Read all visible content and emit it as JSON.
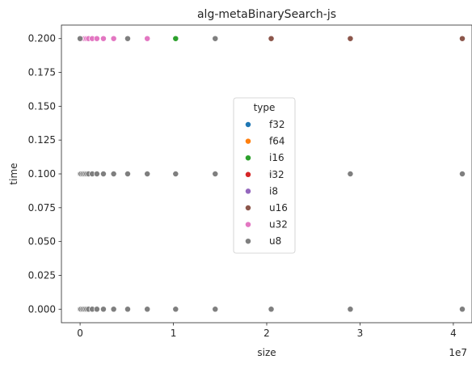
{
  "chart_data": {
    "type": "scatter",
    "title": "alg-metaBinarySearch-js",
    "xlabel": "size",
    "ylabel": "time",
    "x_offset_label": "1e7",
    "xlim": [
      -2000000,
      42000000
    ],
    "ylim": [
      -0.01,
      0.21
    ],
    "x_ticks": [
      0,
      10000000,
      20000000,
      30000000,
      40000000
    ],
    "x_tick_labels": [
      "0",
      "1",
      "2",
      "3",
      "4"
    ],
    "y_ticks": [
      0,
      0.025,
      0.05,
      0.075,
      0.1,
      0.125,
      0.15,
      0.175,
      0.2
    ],
    "y_tick_labels": [
      "0.000",
      "0.025",
      "0.050",
      "0.075",
      "0.100",
      "0.125",
      "0.150",
      "0.175",
      "0.200"
    ],
    "grid": false,
    "legend": {
      "title": "type",
      "position": "center"
    },
    "series": [
      {
        "name": "f32",
        "color": "#1f77b4",
        "points": [
          [
            0,
            0
          ],
          [
            0,
            0.2
          ]
        ]
      },
      {
        "name": "f64",
        "color": "#ff7f0e",
        "points": [
          [
            0,
            0
          ],
          [
            0,
            0.2
          ]
        ]
      },
      {
        "name": "i16",
        "color": "#2ca02c",
        "points": [
          [
            0,
            0
          ],
          [
            10240000,
            0.2
          ]
        ]
      },
      {
        "name": "i32",
        "color": "#d62728",
        "points": [
          [
            0,
            0
          ],
          [
            20480000,
            0.2
          ]
        ]
      },
      {
        "name": "i8",
        "color": "#9467bd",
        "points": [
          [
            0,
            0
          ],
          [
            20480000,
            0.2
          ]
        ]
      },
      {
        "name": "u16",
        "color": "#8c564b",
        "points": [
          [
            20480000,
            0.2
          ],
          [
            28960000,
            0.2
          ],
          [
            40960000,
            0.2
          ]
        ]
      },
      {
        "name": "u32",
        "color": "#e377c2",
        "points": [
          [
            100000,
            0.2
          ],
          [
            300000,
            0.2
          ],
          [
            500000,
            0.2
          ],
          [
            700000,
            0.2
          ],
          [
            900000,
            0.2
          ],
          [
            1300000,
            0.2
          ],
          [
            1800000,
            0.2
          ],
          [
            2500000,
            0.2
          ],
          [
            3600000,
            0.2
          ],
          [
            7200000,
            0.2
          ]
        ]
      },
      {
        "name": "u8",
        "color": "#7f7f7f",
        "points": [
          [
            0,
            0.2
          ],
          [
            5100000,
            0.2
          ],
          [
            14480000,
            0.2
          ],
          [
            0,
            0.1
          ],
          [
            100000,
            0.1
          ],
          [
            300000,
            0.1
          ],
          [
            500000,
            0.1
          ],
          [
            700000,
            0.1
          ],
          [
            900000,
            0.1
          ],
          [
            1300000,
            0.1
          ],
          [
            1800000,
            0.1
          ],
          [
            2500000,
            0.1
          ],
          [
            3600000,
            0.1
          ],
          [
            5100000,
            0.1
          ],
          [
            7200000,
            0.1
          ],
          [
            10240000,
            0.1
          ],
          [
            14480000,
            0.1
          ],
          [
            20480000,
            0.1
          ],
          [
            28960000,
            0.1
          ],
          [
            40960000,
            0.1
          ],
          [
            0,
            0
          ],
          [
            100000,
            0
          ],
          [
            300000,
            0
          ],
          [
            500000,
            0
          ],
          [
            700000,
            0
          ],
          [
            900000,
            0
          ],
          [
            1300000,
            0
          ],
          [
            1800000,
            0
          ],
          [
            2500000,
            0
          ],
          [
            3600000,
            0
          ],
          [
            5100000,
            0
          ],
          [
            7200000,
            0
          ],
          [
            10240000,
            0
          ],
          [
            14480000,
            0
          ],
          [
            20480000,
            0
          ],
          [
            28960000,
            0
          ],
          [
            40960000,
            0
          ]
        ]
      }
    ]
  }
}
